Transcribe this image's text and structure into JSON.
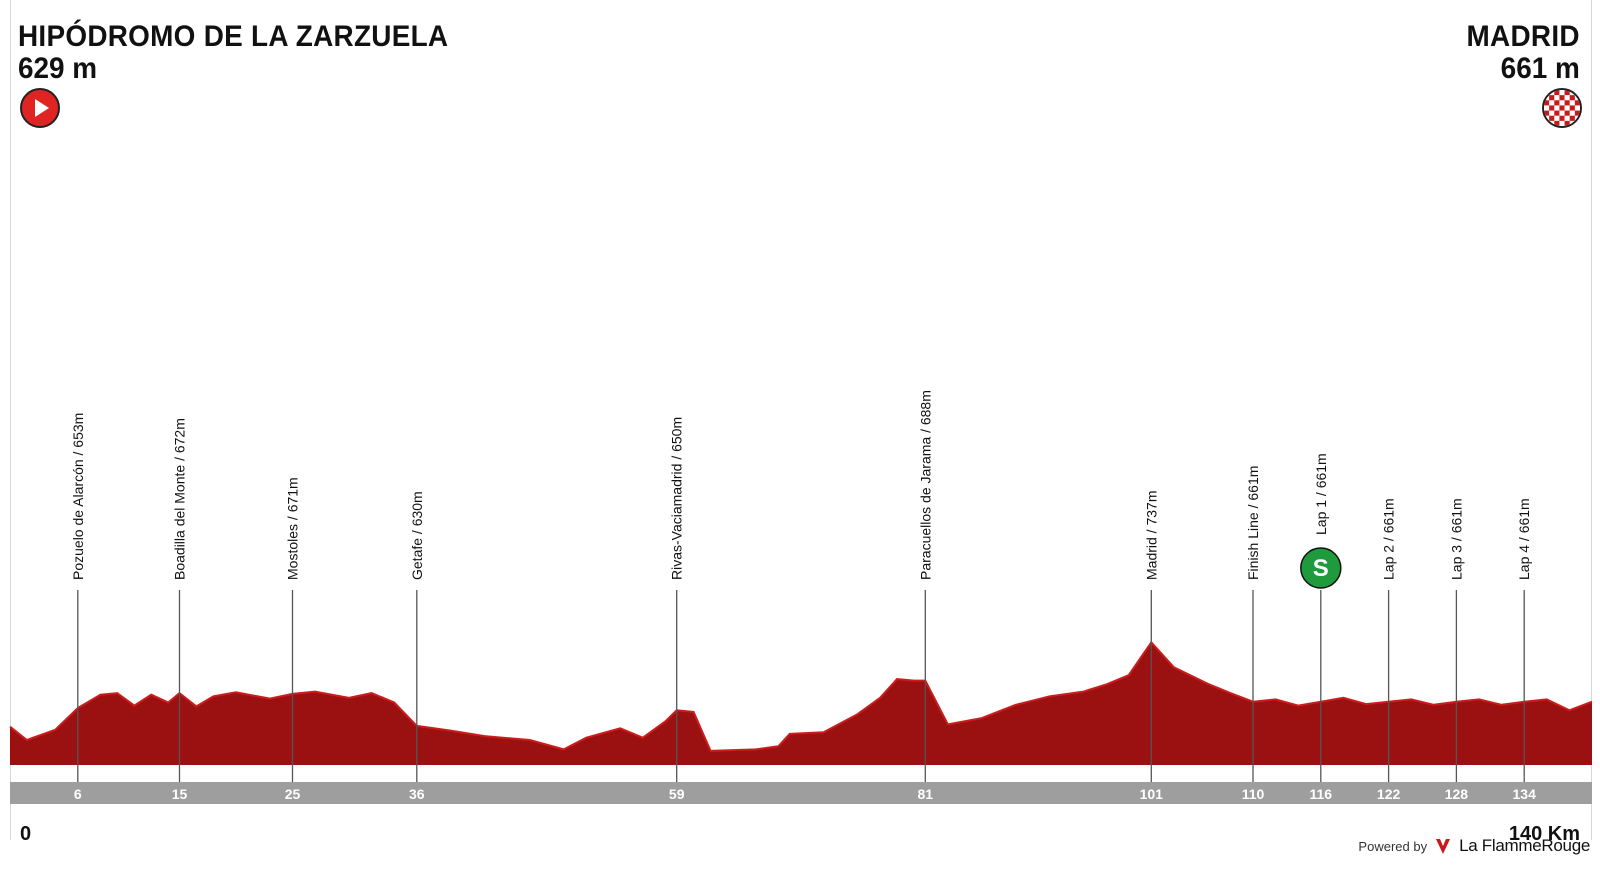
{
  "start": {
    "name": "HIPÓDROMO DE LA ZARZUELA",
    "altitude": "629 m",
    "icon": "play-icon"
  },
  "finish": {
    "name": "MADRID",
    "altitude": "661 m",
    "icon": "checkered-flag-icon"
  },
  "footer": {
    "powered_label": "Powered by",
    "brand": "La FlammeRouge"
  },
  "colors": {
    "profile": "#9b1111",
    "profile_edge": "#cc1d1d",
    "axis_bar": "#9e9e9e",
    "sprint": "#1f9a3c",
    "start_icon": "#e02424"
  },
  "chart_data": {
    "type": "area",
    "xlabel": "",
    "ylabel": "",
    "xlim": [
      0,
      140
    ],
    "x_start_label": "0",
    "x_end_label": "140 Km",
    "elevation": [
      [
        0,
        629
      ],
      [
        1.5,
        612
      ],
      [
        4,
        625
      ],
      [
        6,
        653
      ],
      [
        8,
        670
      ],
      [
        9.5,
        672
      ],
      [
        11,
        656
      ],
      [
        12.5,
        670
      ],
      [
        14,
        660
      ],
      [
        15,
        672
      ],
      [
        16.5,
        655
      ],
      [
        18,
        668
      ],
      [
        20,
        673
      ],
      [
        23,
        665
      ],
      [
        25,
        671
      ],
      [
        27,
        674
      ],
      [
        30,
        666
      ],
      [
        32,
        672
      ],
      [
        34,
        660
      ],
      [
        36,
        630
      ],
      [
        39,
        624
      ],
      [
        42,
        617
      ],
      [
        46,
        612
      ],
      [
        49,
        600
      ],
      [
        51,
        615
      ],
      [
        54,
        627
      ],
      [
        56,
        615
      ],
      [
        58,
        636
      ],
      [
        59,
        650
      ],
      [
        60.5,
        648
      ],
      [
        62,
        598
      ],
      [
        66,
        600
      ],
      [
        68,
        604
      ],
      [
        69,
        620
      ],
      [
        72,
        622
      ],
      [
        75,
        645
      ],
      [
        77,
        666
      ],
      [
        78.5,
        690
      ],
      [
        80,
        688
      ],
      [
        81,
        688
      ],
      [
        83,
        632
      ],
      [
        86,
        640
      ],
      [
        89,
        657
      ],
      [
        92,
        668
      ],
      [
        95,
        674
      ],
      [
        97,
        683
      ],
      [
        99,
        695
      ],
      [
        101,
        737
      ],
      [
        103,
        705
      ],
      [
        106,
        684
      ],
      [
        108,
        672
      ],
      [
        110,
        661
      ],
      [
        112,
        664
      ],
      [
        114,
        656
      ],
      [
        116,
        661
      ],
      [
        118,
        666
      ],
      [
        120,
        658
      ],
      [
        122,
        661
      ],
      [
        124,
        664
      ],
      [
        126,
        657
      ],
      [
        128,
        661
      ],
      [
        130,
        664
      ],
      [
        132,
        657
      ],
      [
        134,
        661
      ],
      [
        136,
        664
      ],
      [
        138,
        650
      ],
      [
        140,
        661
      ]
    ],
    "waypoints": [
      {
        "km": 6,
        "label": "Pozuelo de Alarcón / 653m"
      },
      {
        "km": 15,
        "label": "Boadilla del Monte / 672m"
      },
      {
        "km": 25,
        "label": "Mostoles / 671m"
      },
      {
        "km": 36,
        "label": "Getafe / 630m"
      },
      {
        "km": 59,
        "label": "Rivas-Vaciamadrid / 650m"
      },
      {
        "km": 81,
        "label": "Paracuellos de Jarama / 688m"
      },
      {
        "km": 101,
        "label": "Madrid / 737m"
      },
      {
        "km": 110,
        "label": "Finish Line / 661m"
      },
      {
        "km": 116,
        "label": "Lap 1 / 661m",
        "sprint": true,
        "sprint_letter": "S"
      },
      {
        "km": 122,
        "label": "Lap 2 / 661m"
      },
      {
        "km": 128,
        "label": "Lap 3 / 661m"
      },
      {
        "km": 134,
        "label": "Lap 4 / 661m"
      }
    ]
  }
}
